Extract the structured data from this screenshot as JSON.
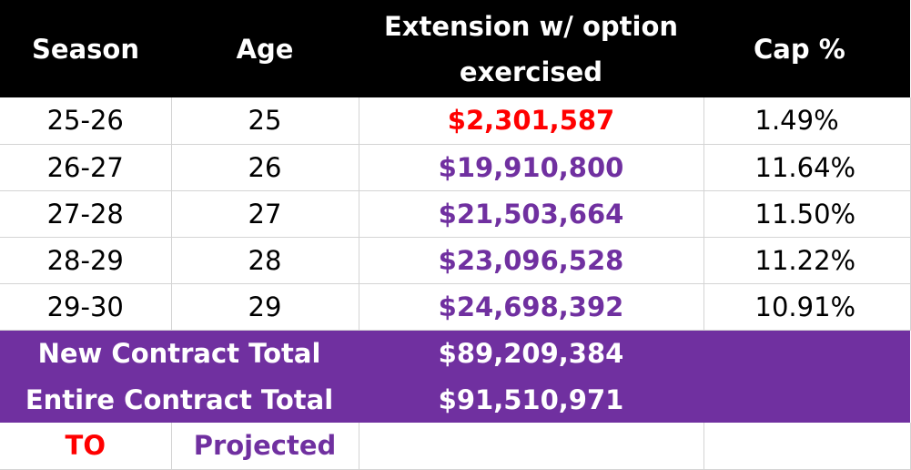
{
  "colors": {
    "header_bg": "#000000",
    "header_text": "#ffffff",
    "team_option": "#ff0000",
    "projected": "#7030a0",
    "total_bg": "#7030a0",
    "total_text": "#ffffff",
    "grid": "#d4d4d4"
  },
  "header": {
    "season": "Season",
    "age": "Age",
    "extension_line1": "Extension w/ option",
    "extension_line2": "exercised",
    "cap": "Cap %"
  },
  "rows": [
    {
      "season": "25-26",
      "age": "25",
      "extension": "$2,301,587",
      "cap": "1.49%",
      "kind": "team_option"
    },
    {
      "season": "26-27",
      "age": "26",
      "extension": "$19,910,800",
      "cap": "11.64%",
      "kind": "projected"
    },
    {
      "season": "27-28",
      "age": "27",
      "extension": "$21,503,664",
      "cap": "11.50%",
      "kind": "projected"
    },
    {
      "season": "28-29",
      "age": "28",
      "extension": "$23,096,528",
      "cap": "11.22%",
      "kind": "projected"
    },
    {
      "season": "29-30",
      "age": "29",
      "extension": "$24,698,392",
      "cap": "10.91%",
      "kind": "projected"
    }
  ],
  "totals": [
    {
      "label": "New Contract Total",
      "value": "$89,209,384"
    },
    {
      "label": "Entire Contract Total",
      "value": "$91,510,971"
    }
  ],
  "legend": {
    "team_option": "TO",
    "projected": "Projected"
  }
}
